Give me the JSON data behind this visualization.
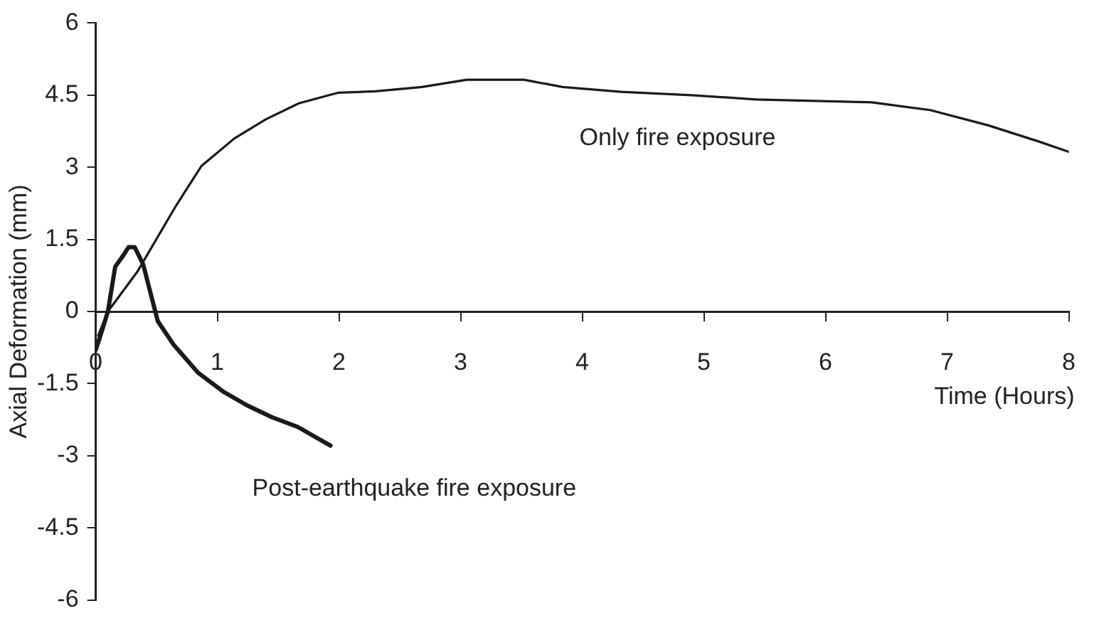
{
  "chart_data": {
    "type": "line",
    "xlabel": "Time (Hours)",
    "ylabel": "Axial Deformation (mm)",
    "xlim": [
      0,
      8
    ],
    "xticks": [
      0,
      1,
      2,
      3,
      4,
      5,
      6,
      7,
      8
    ],
    "ylim": [
      -6,
      6
    ],
    "yticks": [
      -6,
      -4.5,
      -3,
      -1.5,
      0,
      1.5,
      3,
      4.5,
      6
    ],
    "grid": false,
    "legend": false,
    "marker": "none",
    "line_style": "solid",
    "series": [
      {
        "name": "Only fire exposure",
        "color": "#1a1a1a",
        "x": [
          0.02,
          0.1,
          0.34,
          0.66,
          0.87,
          1.14,
          1.4,
          1.67,
          1.99,
          2.3,
          2.68,
          3.05,
          3.52,
          3.84,
          4.32,
          4.9,
          5.43,
          6.38,
          6.86,
          7.34,
          7.76,
          8.0
        ],
        "values": [
          -0.5,
          0,
          0.82,
          2.2,
          3.03,
          3.6,
          4.0,
          4.33,
          4.55,
          4.58,
          4.67,
          4.82,
          4.82,
          4.67,
          4.57,
          4.5,
          4.41,
          4.35,
          4.19,
          3.87,
          3.53,
          3.32
        ]
      },
      {
        "name": "Post-earthquake fire exposure",
        "color": "#1a1a1a",
        "x": [
          0,
          0.04,
          0.1,
          0.16,
          0.23,
          0.27,
          0.32,
          0.39,
          0.45,
          0.51,
          0.64,
          0.84,
          1.05,
          1.25,
          1.45,
          1.66,
          1.93
        ],
        "values": [
          -0.8,
          -0.49,
          0,
          0.93,
          1.18,
          1.34,
          1.34,
          0.98,
          0.39,
          -0.2,
          -0.69,
          -1.27,
          -1.67,
          -1.96,
          -2.2,
          -2.4,
          -2.79
        ]
      }
    ]
  }
}
